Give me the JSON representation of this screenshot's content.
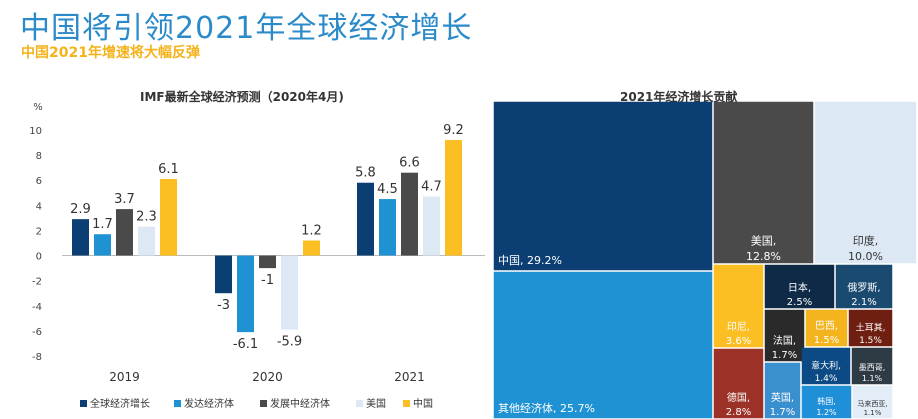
{
  "header": {
    "title": "中国将引领2021年全球经济增长",
    "subtitle": "中国2021年增速将大幅反弹"
  },
  "chart_data": [
    {
      "type": "bar",
      "title": "IMF最新全球经济预测（2020年4月)",
      "ylabel": "%",
      "ylim": [
        -8,
        10
      ],
      "yticks": [
        10,
        8,
        6,
        4,
        2,
        0,
        -2,
        -4,
        -6,
        -8
      ],
      "categories": [
        "2019",
        "2020",
        "2021"
      ],
      "series": [
        {
          "name": "全球经济增长",
          "color": "#0b3f73",
          "values": [
            2.9,
            -3,
            5.8
          ],
          "labels": [
            "2.9",
            "-3",
            "5.8"
          ]
        },
        {
          "name": "发达经济体",
          "color": "#1e92d2",
          "values": [
            1.7,
            -6.1,
            4.5
          ],
          "labels": [
            "1.7",
            "-6.1",
            "4.5"
          ]
        },
        {
          "name": "发展中经济体",
          "color": "#4a4a4a",
          "values": [
            3.7,
            -1,
            6.6
          ],
          "labels": [
            "3.7",
            "-1",
            "6.6"
          ]
        },
        {
          "name": "美国",
          "color": "#dce9f5",
          "values": [
            2.3,
            -5.9,
            4.7
          ],
          "labels": [
            "2.3",
            "-5.9",
            "4.7"
          ]
        },
        {
          "name": "中国",
          "color": "#fbbf24",
          "values": [
            6.1,
            1.2,
            9.2
          ],
          "labels": [
            "6.1",
            "1.2",
            "9.2"
          ]
        }
      ]
    },
    {
      "type": "treemap",
      "title": "2021年经济增长贡献",
      "items": [
        {
          "name": "中国",
          "value": "29.2%",
          "color": "#0b3f73",
          "text_color": "#ffffff"
        },
        {
          "name": "其他经济体",
          "value": "25.7%",
          "color": "#1e92d2",
          "text_color": "#ffffff"
        },
        {
          "name": "美国",
          "value": "12.8%",
          "color": "#4a4a4a",
          "text_color": "#ffffff"
        },
        {
          "name": "印度",
          "value": "10.0%",
          "color": "#dce9f5",
          "text_color": "#333333"
        },
        {
          "name": "印尼",
          "value": "3.6%",
          "color": "#fbbf24",
          "text_color": "#ffffff"
        },
        {
          "name": "德国",
          "value": "2.8%",
          "color": "#9c3227",
          "text_color": "#ffffff"
        },
        {
          "name": "日本",
          "value": "2.5%",
          "color": "#0f2a47",
          "text_color": "#ffffff"
        },
        {
          "name": "俄罗斯",
          "value": "2.1%",
          "color": "#1b4a70",
          "text_color": "#ffffff"
        },
        {
          "name": "法国",
          "value": "1.7%",
          "color": "#2a2a2a",
          "text_color": "#ffffff"
        },
        {
          "name": "巴西",
          "value": "1.5%",
          "color": "#f3b41d",
          "text_color": "#ffffff"
        },
        {
          "name": "土耳其",
          "value": "1.5%",
          "color": "#6e1f12",
          "text_color": "#ffffff"
        },
        {
          "name": "英国",
          "value": "1.7%",
          "color": "#3a8fce",
          "text_color": "#ffffff"
        },
        {
          "name": "意大利",
          "value": "1.4%",
          "color": "#0b4a85",
          "text_color": "#ffffff"
        },
        {
          "name": "墨西哥",
          "value": "1.1%",
          "color": "#2e3a44",
          "text_color": "#ffffff"
        },
        {
          "name": "韩国",
          "value": "1.2%",
          "color": "#1f8fd8",
          "text_color": "#ffffff"
        },
        {
          "name": "马来西亚",
          "value": "1.1%",
          "color": "#e3edf7",
          "text_color": "#333333"
        }
      ]
    }
  ]
}
